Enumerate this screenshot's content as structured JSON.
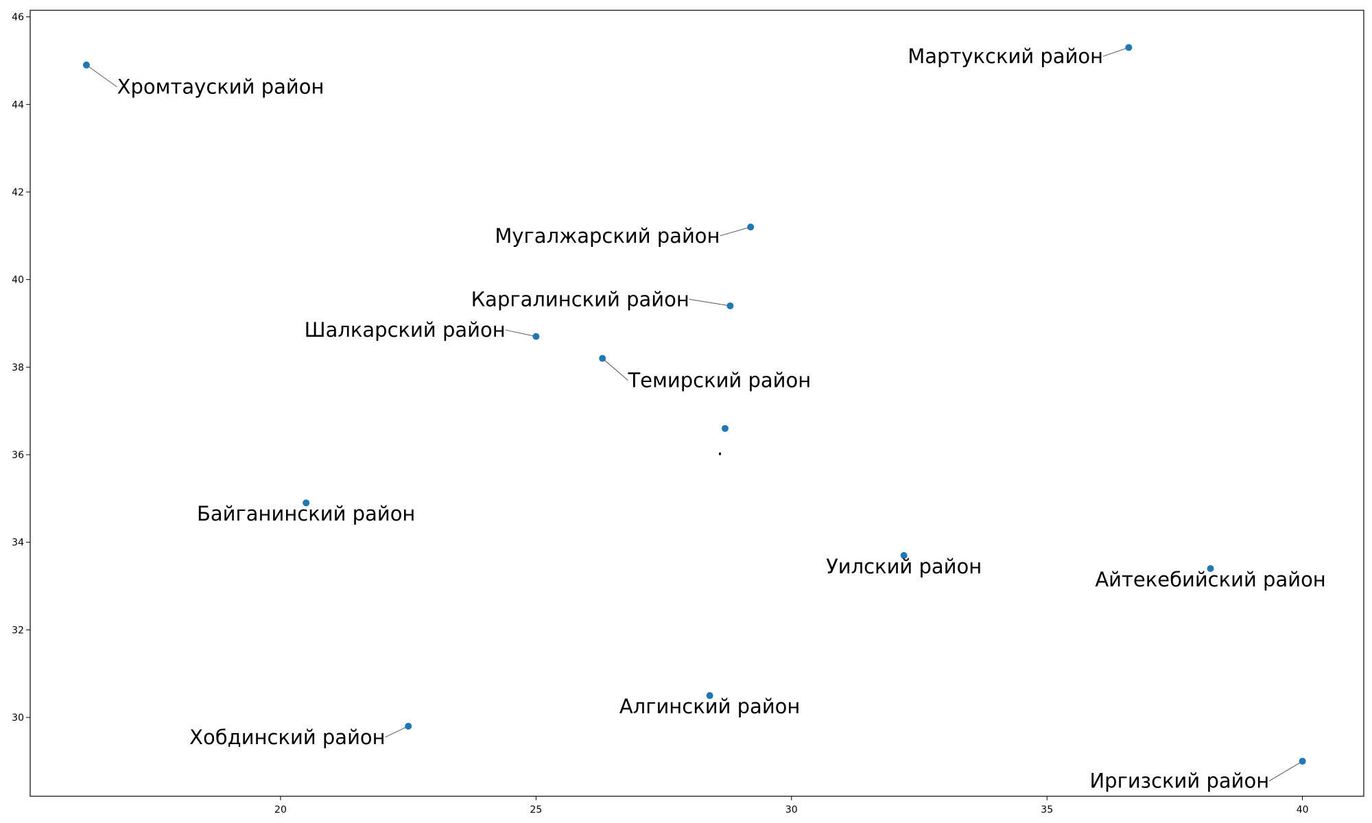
{
  "chart_data": {
    "type": "scatter",
    "title": "",
    "xlabel": "",
    "ylabel": "",
    "xlim": [
      15.1,
      41.2
    ],
    "ylim": [
      28.2,
      46.15
    ],
    "xticks": [
      20,
      25,
      30,
      35,
      40
    ],
    "yticks": [
      30,
      32,
      34,
      36,
      38,
      40,
      42,
      44,
      46
    ],
    "grid": false,
    "marker_color": "#1f77b4",
    "points": [
      {
        "x": 16.2,
        "y": 44.9,
        "label": "Хромтауский район",
        "label_x": 16.8,
        "label_y": 44.4,
        "anchor": "start",
        "leader": true
      },
      {
        "x": 36.6,
        "y": 45.3,
        "label": "Мартукский район",
        "label_x": 36.1,
        "label_y": 45.1,
        "anchor": "end",
        "leader": true
      },
      {
        "x": 29.2,
        "y": 41.2,
        "label": "Мугалжарский район",
        "label_x": 28.6,
        "label_y": 41.0,
        "anchor": "end",
        "leader": true
      },
      {
        "x": 28.8,
        "y": 39.4,
        "label": "Каргалинский район",
        "label_x": 28.0,
        "label_y": 39.55,
        "anchor": "end",
        "leader": true
      },
      {
        "x": 25.0,
        "y": 38.7,
        "label": "Шалкарский район",
        "label_x": 24.4,
        "label_y": 38.85,
        "anchor": "end",
        "leader": true
      },
      {
        "x": 26.3,
        "y": 38.2,
        "label": "Темирский район",
        "label_x": 26.8,
        "label_y": 37.7,
        "anchor": "start",
        "leader": true
      },
      {
        "x": 28.7,
        "y": 36.6,
        "label": ".",
        "label_x": 28.6,
        "label_y": 36.15,
        "anchor": "middle",
        "leader": false
      },
      {
        "x": 20.5,
        "y": 34.9,
        "label": "Байганинский район",
        "label_x": 20.5,
        "label_y": 34.65,
        "anchor": "middle",
        "leader": false
      },
      {
        "x": 32.2,
        "y": 33.7,
        "label": "Уилский район",
        "label_x": 32.2,
        "label_y": 33.45,
        "anchor": "middle",
        "leader": false
      },
      {
        "x": 38.2,
        "y": 33.4,
        "label": "Айтекебийский район",
        "label_x": 38.2,
        "label_y": 33.15,
        "anchor": "middle",
        "leader": false
      },
      {
        "x": 28.4,
        "y": 30.5,
        "label": "Алгинский район",
        "label_x": 28.4,
        "label_y": 30.25,
        "anchor": "middle",
        "leader": false
      },
      {
        "x": 22.5,
        "y": 29.8,
        "label": "Хобдинский район",
        "label_x": 22.05,
        "label_y": 29.55,
        "anchor": "end",
        "leader": true
      },
      {
        "x": 40.0,
        "y": 29.0,
        "label": "Иргизский район",
        "label_x": 39.35,
        "label_y": 28.55,
        "anchor": "end",
        "leader": true
      }
    ]
  }
}
